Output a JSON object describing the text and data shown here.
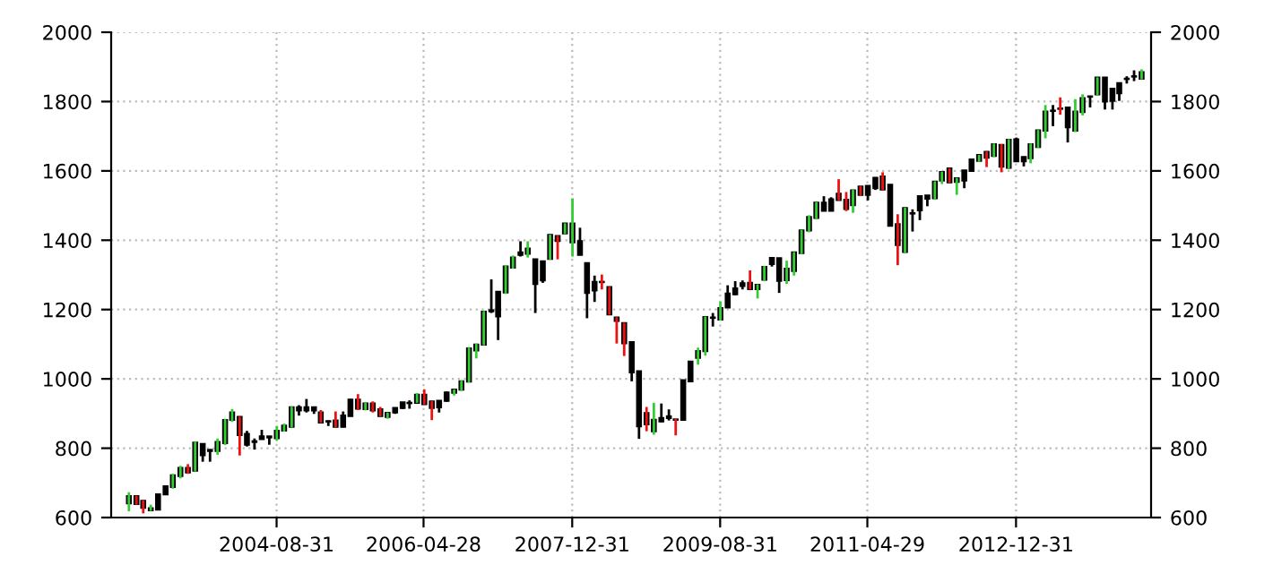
{
  "chart_data": {
    "type": "candlestick",
    "x": [
      "2003-01",
      "2003-02",
      "2003-03",
      "2003-04",
      "2003-05",
      "2003-06",
      "2003-07",
      "2003-08",
      "2003-09",
      "2003-10",
      "2003-11",
      "2003-12",
      "2004-01",
      "2004-02",
      "2004-03",
      "2004-04",
      "2004-05",
      "2004-06",
      "2004-07",
      "2004-08",
      "2004-09",
      "2004-10",
      "2004-11",
      "2004-12",
      "2005-01",
      "2005-02",
      "2005-03",
      "2005-04",
      "2005-05",
      "2005-06",
      "2005-07",
      "2005-08",
      "2005-09",
      "2005-10",
      "2005-11",
      "2005-12",
      "2006-01",
      "2006-02",
      "2006-03",
      "2006-04",
      "2006-05",
      "2006-06",
      "2006-07",
      "2006-08",
      "2006-09",
      "2006-10",
      "2006-11",
      "2006-12",
      "2007-01",
      "2007-02",
      "2007-03",
      "2007-04",
      "2007-05",
      "2007-06",
      "2007-07",
      "2007-08",
      "2007-09",
      "2007-10",
      "2007-11",
      "2007-12",
      "2008-01",
      "2008-02",
      "2008-03",
      "2008-04",
      "2008-05",
      "2008-06",
      "2008-07",
      "2008-08",
      "2008-09",
      "2008-10",
      "2008-11",
      "2008-12",
      "2009-01",
      "2009-02",
      "2009-03",
      "2009-04",
      "2009-05",
      "2009-06",
      "2009-07",
      "2009-08",
      "2009-09",
      "2009-10",
      "2009-11",
      "2009-12",
      "2010-01",
      "2010-02",
      "2010-03",
      "2010-04",
      "2010-05",
      "2010-06",
      "2010-07",
      "2010-08",
      "2010-09",
      "2010-10",
      "2010-11",
      "2010-12",
      "2011-01",
      "2011-02",
      "2011-03",
      "2011-04",
      "2011-05",
      "2011-06",
      "2011-07",
      "2011-08",
      "2011-09",
      "2011-10",
      "2011-11",
      "2011-12",
      "2012-01",
      "2012-02",
      "2012-03",
      "2012-04",
      "2012-05",
      "2012-06",
      "2012-07",
      "2012-08",
      "2012-09",
      "2012-10",
      "2012-11",
      "2012-12",
      "2013-01",
      "2013-02",
      "2013-03",
      "2013-04",
      "2013-05",
      "2013-06",
      "2013-07",
      "2013-08",
      "2013-09",
      "2013-10",
      "2013-11",
      "2013-12",
      "2014-01",
      "2014-02",
      "2014-03",
      "2014-04",
      "2014-05",
      "2014-06"
    ],
    "ohlc": [
      [
        641,
        673,
        618,
        662
      ],
      [
        662,
        663,
        637,
        639
      ],
      [
        648,
        650,
        612,
        628
      ],
      [
        621,
        637,
        619,
        627
      ],
      [
        623,
        668,
        622,
        667
      ],
      [
        667,
        691,
        665,
        690
      ],
      [
        688,
        726,
        683,
        722
      ],
      [
        720,
        749,
        713,
        743
      ],
      [
        743,
        754,
        726,
        730
      ],
      [
        735,
        819,
        733,
        816
      ],
      [
        812,
        814,
        761,
        780
      ],
      [
        795,
        797,
        761,
        792
      ],
      [
        792,
        828,
        781,
        818
      ],
      [
        815,
        885,
        809,
        881
      ],
      [
        882,
        913,
        876,
        903
      ],
      [
        890,
        891,
        779,
        838
      ],
      [
        841,
        850,
        805,
        810
      ],
      [
        818,
        828,
        796,
        820
      ],
      [
        826,
        853,
        825,
        834
      ],
      [
        834,
        835,
        810,
        831
      ],
      [
        829,
        864,
        821,
        850
      ],
      [
        851,
        871,
        848,
        865
      ],
      [
        862,
        920,
        860,
        918
      ],
      [
        918,
        924,
        894,
        909
      ],
      [
        909,
        942,
        903,
        918
      ],
      [
        918,
        920,
        899,
        909
      ],
      [
        903,
        910,
        873,
        874
      ],
      [
        877,
        880,
        864,
        878
      ],
      [
        880,
        906,
        860,
        862
      ],
      [
        862,
        906,
        860,
        894
      ],
      [
        893,
        942,
        892,
        940
      ],
      [
        940,
        956,
        910,
        914
      ],
      [
        913,
        931,
        909,
        929
      ],
      [
        929,
        935,
        903,
        909
      ],
      [
        912,
        919,
        892,
        893
      ],
      [
        890,
        903,
        885,
        902
      ],
      [
        903,
        917,
        899,
        916
      ],
      [
        916,
        933,
        913,
        932
      ],
      [
        931,
        938,
        914,
        930
      ],
      [
        931,
        959,
        931,
        954
      ],
      [
        954,
        970,
        926,
        927
      ],
      [
        935,
        936,
        881,
        916
      ],
      [
        918,
        938,
        903,
        937
      ],
      [
        937,
        963,
        934,
        961
      ],
      [
        960,
        970,
        952,
        969
      ],
      [
        969,
        995,
        965,
        993
      ],
      [
        992,
        1092,
        990,
        1088
      ],
      [
        1082,
        1102,
        1059,
        1099
      ],
      [
        1099,
        1196,
        1097,
        1194
      ],
      [
        1195,
        1287,
        1190,
        1198
      ],
      [
        1180,
        1251,
        1112,
        1251
      ],
      [
        1249,
        1328,
        1245,
        1324
      ],
      [
        1321,
        1356,
        1318,
        1350
      ],
      [
        1358,
        1397,
        1353,
        1365
      ],
      [
        1361,
        1397,
        1350,
        1376
      ],
      [
        1345,
        1345,
        1190,
        1274
      ],
      [
        1284,
        1340,
        1277,
        1339
      ],
      [
        1346,
        1416,
        1344,
        1415
      ],
      [
        1412,
        1413,
        1345,
        1398
      ],
      [
        1420,
        1449,
        1418,
        1448
      ],
      [
        1394,
        1521,
        1353,
        1448
      ],
      [
        1397,
        1436,
        1357,
        1358
      ],
      [
        1334,
        1335,
        1175,
        1248
      ],
      [
        1280,
        1298,
        1222,
        1255
      ],
      [
        1280,
        1301,
        1258,
        1279
      ],
      [
        1265,
        1266,
        1185,
        1186
      ],
      [
        1177,
        1178,
        1102,
        1167
      ],
      [
        1161,
        1162,
        1066,
        1103
      ],
      [
        1106,
        1107,
        993,
        1019
      ],
      [
        1022,
        1023,
        827,
        863
      ],
      [
        901,
        919,
        849,
        869
      ],
      [
        849,
        931,
        839,
        882
      ],
      [
        877,
        929,
        875,
        887
      ],
      [
        887,
        912,
        880,
        892
      ],
      [
        883,
        884,
        837,
        882
      ],
      [
        882,
        997,
        881,
        996
      ],
      [
        993,
        1051,
        992,
        1050
      ],
      [
        1061,
        1090,
        1041,
        1080
      ],
      [
        1080,
        1180,
        1067,
        1178
      ],
      [
        1176,
        1190,
        1151,
        1177
      ],
      [
        1171,
        1223,
        1168,
        1204
      ],
      [
        1206,
        1270,
        1205,
        1246
      ],
      [
        1244,
        1282,
        1242,
        1261
      ],
      [
        1268,
        1284,
        1258,
        1276
      ],
      [
        1277,
        1313,
        1258,
        1259
      ],
      [
        1259,
        1273,
        1232,
        1271
      ],
      [
        1286,
        1326,
        1283,
        1323
      ],
      [
        1331,
        1351,
        1324,
        1349
      ],
      [
        1348,
        1349,
        1248,
        1283
      ],
      [
        1285,
        1341,
        1274,
        1318
      ],
      [
        1311,
        1366,
        1298,
        1365
      ],
      [
        1363,
        1430,
        1360,
        1428
      ],
      [
        1428,
        1472,
        1423,
        1467
      ],
      [
        1464,
        1510,
        1461,
        1508
      ],
      [
        1508,
        1527,
        1484,
        1485
      ],
      [
        1485,
        1524,
        1484,
        1518
      ],
      [
        1534,
        1576,
        1515,
        1516
      ],
      [
        1517,
        1539,
        1484,
        1490
      ],
      [
        1501,
        1546,
        1479,
        1544
      ],
      [
        1555,
        1557,
        1529,
        1531
      ],
      [
        1531,
        1558,
        1515,
        1557
      ],
      [
        1550,
        1582,
        1545,
        1580
      ],
      [
        1584,
        1596,
        1544,
        1546
      ],
      [
        1560,
        1561,
        1441,
        1442
      ],
      [
        1446,
        1475,
        1328,
        1386
      ],
      [
        1366,
        1494,
        1363,
        1493
      ],
      [
        1478,
        1489,
        1425,
        1477
      ],
      [
        1486,
        1528,
        1458,
        1527
      ],
      [
        1529,
        1530,
        1498,
        1520
      ],
      [
        1521,
        1570,
        1518,
        1569
      ],
      [
        1572,
        1598,
        1562,
        1597
      ],
      [
        1607,
        1608,
        1566,
        1567
      ],
      [
        1568,
        1580,
        1531,
        1579
      ],
      [
        1572,
        1602,
        1550,
        1601
      ],
      [
        1600,
        1634,
        1598,
        1633
      ],
      [
        1629,
        1646,
        1626,
        1646
      ],
      [
        1655,
        1656,
        1611,
        1638
      ],
      [
        1643,
        1679,
        1640,
        1677
      ],
      [
        1675,
        1677,
        1596,
        1612
      ],
      [
        1609,
        1692,
        1607,
        1690
      ],
      [
        1691,
        1696,
        1627,
        1628
      ],
      [
        1628,
        1641,
        1613,
        1640
      ],
      [
        1637,
        1679,
        1622,
        1677
      ],
      [
        1669,
        1718,
        1666,
        1717
      ],
      [
        1716,
        1790,
        1694,
        1771
      ],
      [
        1773,
        1790,
        1729,
        1774
      ],
      [
        1780,
        1812,
        1762,
        1779
      ],
      [
        1783,
        1784,
        1682,
        1726
      ],
      [
        1716,
        1807,
        1712,
        1771
      ],
      [
        1770,
        1821,
        1760,
        1810
      ],
      [
        1814,
        1816,
        1783,
        1815
      ],
      [
        1821,
        1870,
        1819,
        1869
      ],
      [
        1869,
        1870,
        1777,
        1800
      ],
      [
        1802,
        1838,
        1777,
        1837
      ],
      [
        1824,
        1854,
        1802,
        1853
      ],
      [
        1865,
        1873,
        1852,
        1866
      ],
      [
        1872,
        1890,
        1859,
        1873
      ],
      [
        1866,
        1893,
        1864,
        1885
      ]
    ],
    "colors": [
      "#33cc33",
      "#ee1111",
      "#ee1111",
      "#33cc33",
      "#000000",
      "#000000",
      "#33cc33",
      "#33cc33",
      "#ee1111",
      "#33cc33",
      "#000000",
      "#000000",
      "#33cc33",
      "#33cc33",
      "#33cc33",
      "#ee1111",
      "#000000",
      "#000000",
      "#000000",
      "#000000",
      "#33cc33",
      "#33cc33",
      "#33cc33",
      "#000000",
      "#000000",
      "#000000",
      "#ee1111",
      "#000000",
      "#ee1111",
      "#000000",
      "#000000",
      "#ee1111",
      "#33cc33",
      "#ee1111",
      "#ee1111",
      "#33cc33",
      "#000000",
      "#000000",
      "#000000",
      "#33cc33",
      "#ee1111",
      "#ee1111",
      "#000000",
      "#000000",
      "#33cc33",
      "#33cc33",
      "#33cc33",
      "#33cc33",
      "#33cc33",
      "#000000",
      "#000000",
      "#33cc33",
      "#33cc33",
      "#000000",
      "#33cc33",
      "#000000",
      "#000000",
      "#33cc33",
      "#ee1111",
      "#33cc33",
      "#33cc33",
      "#000000",
      "#000000",
      "#000000",
      "#ee1111",
      "#ee1111",
      "#ee1111",
      "#ee1111",
      "#000000",
      "#000000",
      "#ee1111",
      "#33cc33",
      "#000000",
      "#000000",
      "#ee1111",
      "#000000",
      "#000000",
      "#33cc33",
      "#33cc33",
      "#000000",
      "#33cc33",
      "#000000",
      "#000000",
      "#000000",
      "#ee1111",
      "#33cc33",
      "#33cc33",
      "#000000",
      "#000000",
      "#33cc33",
      "#33cc33",
      "#33cc33",
      "#33cc33",
      "#33cc33",
      "#000000",
      "#000000",
      "#ee1111",
      "#ee1111",
      "#33cc33",
      "#ee1111",
      "#000000",
      "#000000",
      "#ee1111",
      "#000000",
      "#ee1111",
      "#33cc33",
      "#000000",
      "#000000",
      "#000000",
      "#33cc33",
      "#33cc33",
      "#ee1111",
      "#33cc33",
      "#000000",
      "#000000",
      "#33cc33",
      "#ee1111",
      "#33cc33",
      "#ee1111",
      "#33cc33",
      "#000000",
      "#000000",
      "#33cc33",
      "#33cc33",
      "#33cc33",
      "#000000",
      "#ee1111",
      "#000000",
      "#33cc33",
      "#33cc33",
      "#000000",
      "#33cc33",
      "#000000",
      "#000000",
      "#000000",
      "#000000",
      "#000000",
      "#33cc33"
    ],
    "xlim": [
      "2002-10-20",
      "2014-07-10"
    ],
    "xticks": [
      "2004-08-31",
      "2006-04-28",
      "2007-12-31",
      "2009-08-31",
      "2011-04-29",
      "2012-12-31"
    ],
    "ylim": [
      600,
      2000
    ],
    "yticks": [
      600,
      800,
      1000,
      1200,
      1400,
      1600,
      1800,
      2000
    ],
    "y2lim": [
      600,
      2000
    ],
    "y2ticks": [
      600,
      800,
      1000,
      1200,
      1400,
      1600,
      1800,
      2000
    ],
    "grid": true
  }
}
